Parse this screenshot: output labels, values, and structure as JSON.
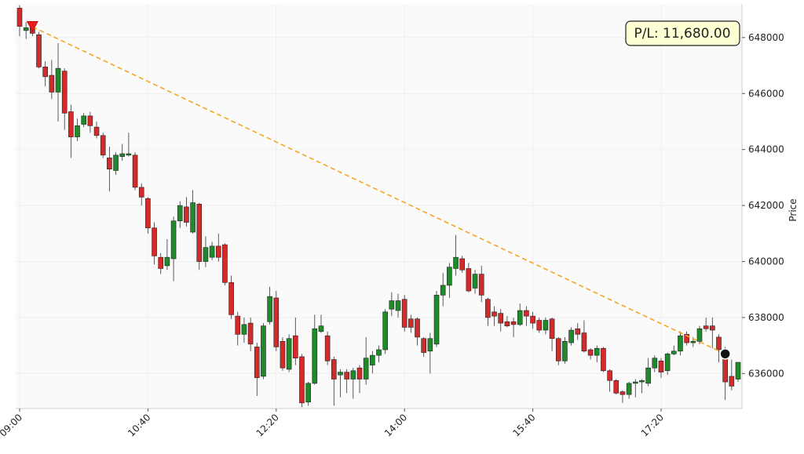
{
  "chart_data": {
    "type": "candlestick",
    "y_label": "Price",
    "x": [
      "09:00",
      "09:05",
      "09:10",
      "09:15",
      "09:20",
      "09:25",
      "09:30",
      "09:35",
      "09:40",
      "09:45",
      "09:50",
      "09:55",
      "10:00",
      "10:05",
      "10:10",
      "10:15",
      "10:20",
      "10:25",
      "10:30",
      "10:35",
      "10:40",
      "10:45",
      "10:50",
      "10:55",
      "11:00",
      "11:05",
      "11:10",
      "11:15",
      "11:20",
      "11:25",
      "11:30",
      "11:35",
      "11:40",
      "11:45",
      "11:50",
      "11:55",
      "12:00",
      "12:05",
      "12:10",
      "12:15",
      "12:20",
      "12:25",
      "12:30",
      "12:35",
      "12:40",
      "12:45",
      "12:50",
      "12:55",
      "13:00",
      "13:05",
      "13:10",
      "13:15",
      "13:20",
      "13:25",
      "13:30",
      "13:35",
      "13:40",
      "13:45",
      "13:50",
      "13:55",
      "14:00",
      "14:05",
      "14:10",
      "14:15",
      "14:20",
      "14:25",
      "14:30",
      "14:35",
      "14:40",
      "14:45",
      "14:50",
      "14:55",
      "15:00",
      "15:05",
      "15:10",
      "15:15",
      "15:20",
      "15:25",
      "15:30",
      "15:35",
      "15:40",
      "15:45",
      "15:50",
      "15:55",
      "16:00",
      "16:05",
      "16:10",
      "16:15",
      "16:20",
      "16:25",
      "16:30",
      "16:35",
      "16:40",
      "16:45",
      "16:50",
      "16:55",
      "17:00",
      "17:05",
      "17:10",
      "17:15",
      "17:20",
      "17:25",
      "17:30",
      "17:35",
      "17:40",
      "17:45",
      "17:50",
      "17:55",
      "18:00",
      "18:05",
      "18:10",
      "18:15",
      "18:20"
    ],
    "open": [
      649050,
      648250,
      648350,
      648100,
      646950,
      646650,
      646050,
      646800,
      645350,
      644450,
      644900,
      645200,
      644800,
      644500,
      643700,
      643250,
      643750,
      643800,
      643800,
      642650,
      642250,
      641200,
      640150,
      639850,
      640100,
      641450,
      641950,
      641050,
      642050,
      640000,
      640150,
      640550,
      640600,
      639250,
      638050,
      637400,
      637800,
      636950,
      635900,
      637850,
      638700,
      637150,
      636150,
      637350,
      636600,
      634980,
      635650,
      637500,
      637350,
      636500,
      635950,
      636050,
      635800,
      636200,
      635800,
      636300,
      636650,
      636850,
      638300,
      638250,
      638650,
      637950,
      637950,
      637250,
      636800,
      637050,
      638800,
      639150,
      639750,
      640100,
      639750,
      639050,
      639550,
      638650,
      638200,
      638150,
      637850,
      637850,
      637750,
      638250,
      638050,
      637900,
      637550,
      637950,
      637250,
      636450,
      637100,
      637600,
      637450,
      636850,
      636650,
      636900,
      636100,
      635750,
      635350,
      635250,
      635650,
      635700,
      635650,
      636200,
      636450,
      636100,
      636700,
      636800,
      637400,
      637100,
      637150,
      637700,
      637700,
      637300,
      636750,
      635900,
      635800
    ],
    "high": [
      649150,
      648550,
      648450,
      648200,
      647150,
      647200,
      647800,
      646900,
      645600,
      645100,
      645300,
      645350,
      645000,
      644600,
      644100,
      643900,
      644200,
      644600,
      643900,
      642800,
      642300,
      641400,
      640300,
      640800,
      641600,
      642150,
      642300,
      642550,
      642100,
      640900,
      640700,
      641000,
      640650,
      639500,
      638200,
      638000,
      638000,
      637100,
      637800,
      639100,
      638950,
      637300,
      637400,
      638000,
      636700,
      635700,
      638100,
      638100,
      637500,
      636600,
      636150,
      636150,
      636200,
      636300,
      637300,
      636800,
      637000,
      638300,
      638900,
      638850,
      638800,
      638100,
      638000,
      637300,
      637450,
      638950,
      639600,
      639950,
      640950,
      640200,
      639950,
      639700,
      639850,
      638700,
      638400,
      638300,
      638050,
      638000,
      638500,
      638400,
      638200,
      638000,
      638000,
      638000,
      637300,
      637300,
      637650,
      637800,
      637900,
      636900,
      637000,
      636950,
      636150,
      635800,
      635400,
      635700,
      635800,
      635800,
      636550,
      636650,
      636550,
      636750,
      637000,
      637500,
      637500,
      637300,
      637700,
      638000,
      638000,
      637400,
      636950,
      636500,
      636400
    ],
    "low": [
      648050,
      647950,
      648050,
      646900,
      646250,
      645800,
      645000,
      644700,
      643700,
      644300,
      644800,
      644600,
      644400,
      643700,
      642500,
      643100,
      643600,
      643750,
      642550,
      642000,
      641000,
      639900,
      639550,
      639700,
      639300,
      641200,
      641250,
      641000,
      639700,
      639800,
      640050,
      640000,
      639150,
      637950,
      637000,
      637100,
      636800,
      635200,
      635800,
      637750,
      636800,
      636100,
      636050,
      636300,
      634800,
      634850,
      635600,
      637450,
      636300,
      634850,
      635150,
      635300,
      635100,
      635300,
      635600,
      636000,
      636400,
      636700,
      638050,
      638000,
      637500,
      637450,
      637000,
      636600,
      636000,
      636950,
      638400,
      638700,
      639500,
      639600,
      638900,
      638850,
      638550,
      637700,
      637700,
      637500,
      637650,
      637300,
      637700,
      637700,
      637600,
      637450,
      637400,
      636800,
      636300,
      636350,
      637000,
      637200,
      636750,
      636500,
      636400,
      636050,
      635350,
      635250,
      634950,
      635100,
      635150,
      635300,
      635550,
      636050,
      635850,
      635950,
      636650,
      636650,
      637000,
      636950,
      637050,
      637500,
      636900,
      636400,
      635050,
      635400,
      635700
    ],
    "close": [
      648400,
      648350,
      648150,
      646950,
      646600,
      646050,
      646900,
      645300,
      644450,
      644850,
      645200,
      644850,
      644500,
      643800,
      643300,
      643800,
      643850,
      643850,
      642650,
      642300,
      641200,
      640200,
      639750,
      640150,
      641450,
      642000,
      641400,
      642100,
      640000,
      640500,
      640550,
      640150,
      639250,
      638100,
      637400,
      637750,
      637050,
      635850,
      637700,
      638750,
      636950,
      636200,
      637250,
      636550,
      634950,
      635650,
      637600,
      637700,
      636450,
      635800,
      636050,
      635800,
      636100,
      635800,
      636550,
      636650,
      636850,
      638200,
      638600,
      638600,
      637650,
      637650,
      637300,
      636750,
      637250,
      638800,
      639150,
      639800,
      640150,
      639700,
      638950,
      639550,
      638800,
      638000,
      638050,
      637800,
      637700,
      637750,
      638250,
      638050,
      637800,
      637550,
      637900,
      637250,
      636450,
      637150,
      637550,
      637400,
      636800,
      636650,
      636900,
      636100,
      635750,
      635300,
      635250,
      635650,
      635700,
      635750,
      636200,
      636550,
      636050,
      636700,
      636800,
      637350,
      637100,
      637150,
      637600,
      637600,
      637550,
      636850,
      635700,
      635550,
      636400
    ],
    "up_color": "#1f8a2a",
    "down_color": "#d42a2a",
    "ylim": [
      634750,
      649200
    ],
    "yticks": [
      636000,
      638000,
      640000,
      642000,
      644000,
      646000,
      648000
    ],
    "xticks": [
      "09:00",
      "10:40",
      "12:20",
      "14:00",
      "15:40",
      "17:20"
    ],
    "grid": true,
    "trade": {
      "entry": {
        "time": "09:10",
        "price": 648380
      },
      "exit": {
        "time": "18:10",
        "price": 636700
      },
      "line_color": "#f5a623"
    },
    "annotation": "P/L: 11,680.00"
  }
}
